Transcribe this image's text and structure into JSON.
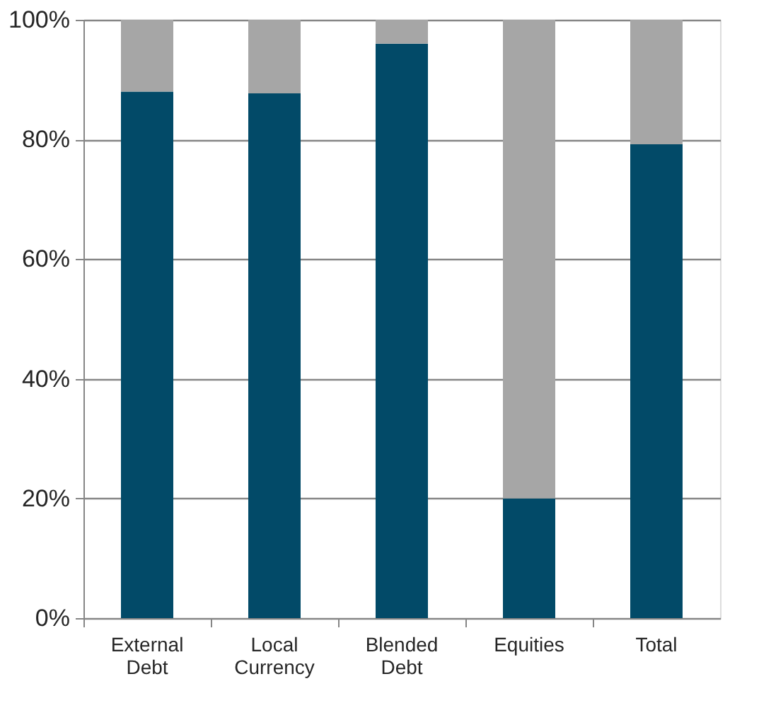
{
  "chart_data": {
    "type": "bar",
    "stacked": true,
    "categories": [
      "External Debt",
      "Local Currency",
      "Blended Debt",
      "Equities",
      "Total"
    ],
    "series": [
      {
        "color": "#024a68",
        "values": [
          88,
          87.7,
          96,
          20,
          79.2
        ]
      },
      {
        "color": "#a6a6a6",
        "values": [
          12,
          12.3,
          4,
          80,
          20.8
        ]
      }
    ],
    "ylim": [
      0,
      100
    ],
    "yticks": [
      {
        "value": 0,
        "label": "0%"
      },
      {
        "value": 20,
        "label": "20%"
      },
      {
        "value": 40,
        "label": "40%"
      },
      {
        "value": 60,
        "label": "60%"
      },
      {
        "value": 80,
        "label": "80%"
      },
      {
        "value": 100,
        "label": "100%"
      }
    ],
    "grid": "y",
    "legend": false
  }
}
